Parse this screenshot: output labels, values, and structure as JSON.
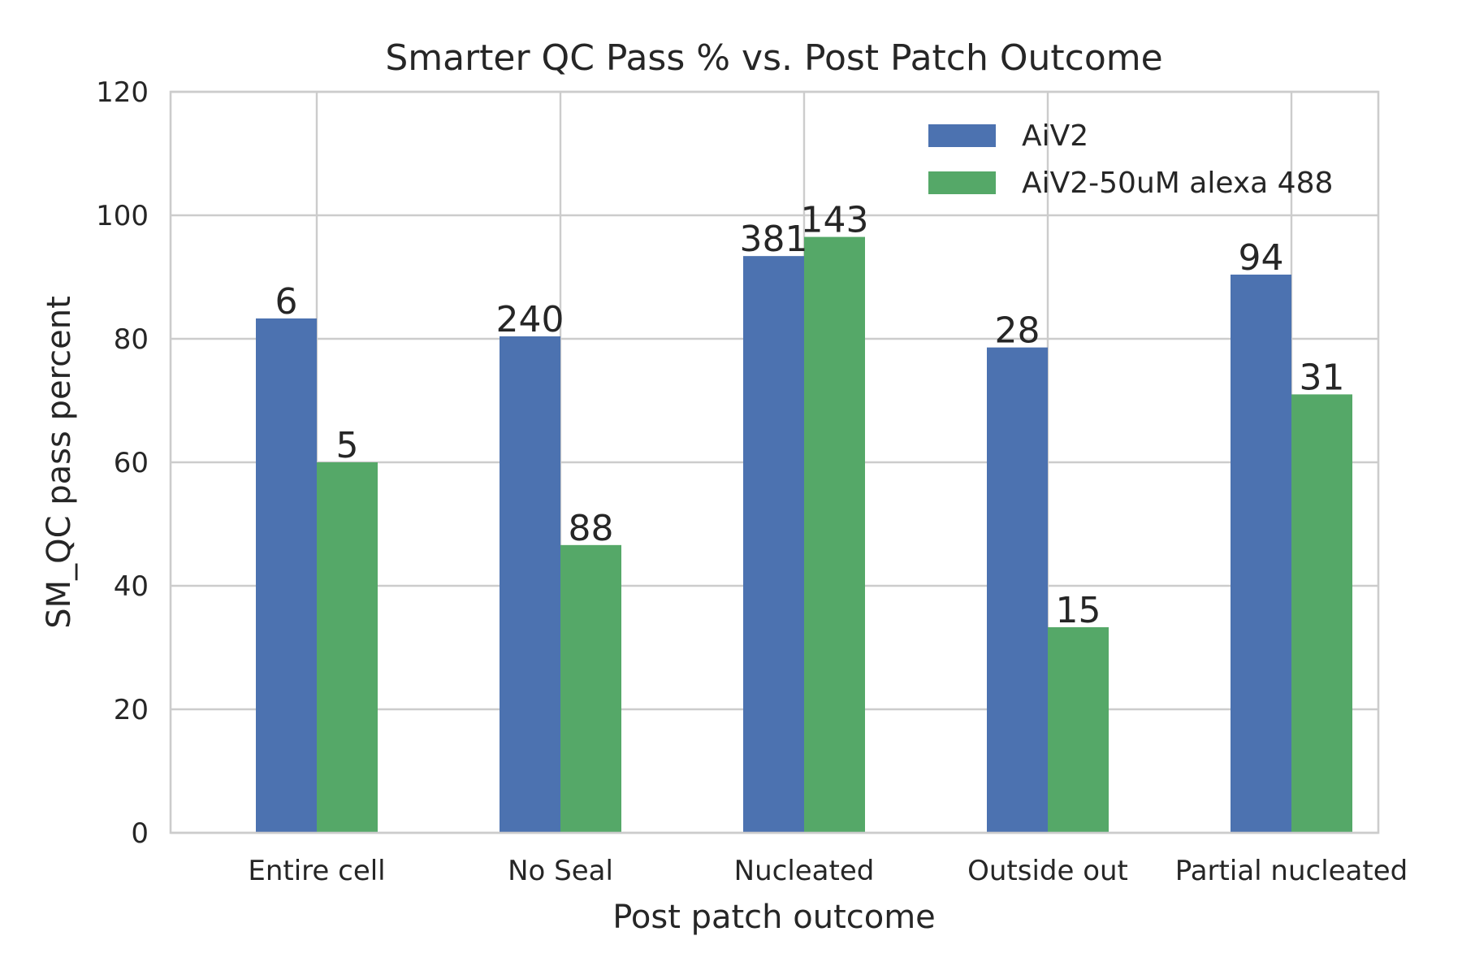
{
  "chart_data": {
    "type": "bar",
    "title": "Smarter QC Pass % vs. Post Patch Outcome",
    "xlabel": "Post patch outcome",
    "ylabel": "SM_QC pass percent",
    "ylim": [
      0,
      120
    ],
    "yticks": [
      "0",
      "20",
      "40",
      "60",
      "80",
      "100",
      "120"
    ],
    "categories": [
      "Entire cell",
      "No Seal",
      "Nucleated",
      "Outside out",
      "Partial nucleated"
    ],
    "grid": true,
    "legend_position": "top-right",
    "series": [
      {
        "name": "AiV2",
        "color": "#4c72b0",
        "values": [
          83.3,
          80.4,
          93.4,
          78.6,
          90.4
        ],
        "labels": [
          "6",
          "240",
          "381",
          "28",
          "94"
        ]
      },
      {
        "name": "AiV2-50uM alexa 488",
        "color": "#55a868",
        "values": [
          60.0,
          46.6,
          96.5,
          33.3,
          71.0
        ],
        "labels": [
          "5",
          "88",
          "143",
          "15",
          "31"
        ]
      }
    ]
  }
}
